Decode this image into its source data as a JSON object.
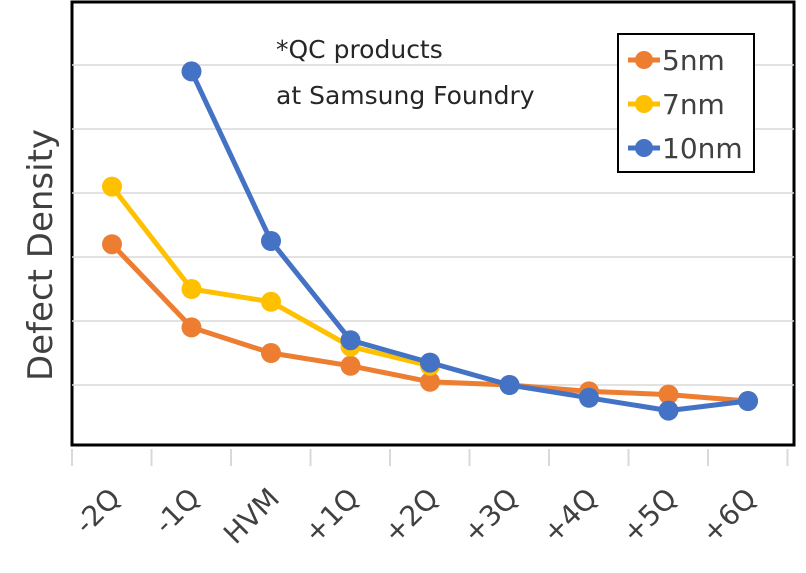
{
  "chart_data": {
    "type": "line",
    "title": "",
    "xlabel": "",
    "ylabel": "Defect Density",
    "categories": [
      "-2Q",
      "-1Q",
      "HVM",
      "+1Q",
      "+2Q",
      "+3Q",
      "+4Q",
      "+5Q",
      "+6Q"
    ],
    "ylim": [
      0,
      7
    ],
    "y_tick_labels_shown": false,
    "grid": "horizontal",
    "legend_position": "top-right",
    "annotation": [
      "*QC products",
      "at Samsung Foundry"
    ],
    "series": [
      {
        "name": "5nm",
        "color": "#ED7D31",
        "values": [
          3.2,
          1.9,
          1.5,
          1.3,
          1.05,
          1.0,
          0.9,
          0.85,
          0.75
        ]
      },
      {
        "name": "7nm",
        "color": "#FFC000",
        "values": [
          4.1,
          2.5,
          2.3,
          1.6,
          1.3,
          null,
          null,
          null,
          null
        ]
      },
      {
        "name": "10nm",
        "color": "#4472C4",
        "values": [
          null,
          5.9,
          3.25,
          1.7,
          1.35,
          1.0,
          0.8,
          0.6,
          0.75
        ]
      }
    ]
  }
}
